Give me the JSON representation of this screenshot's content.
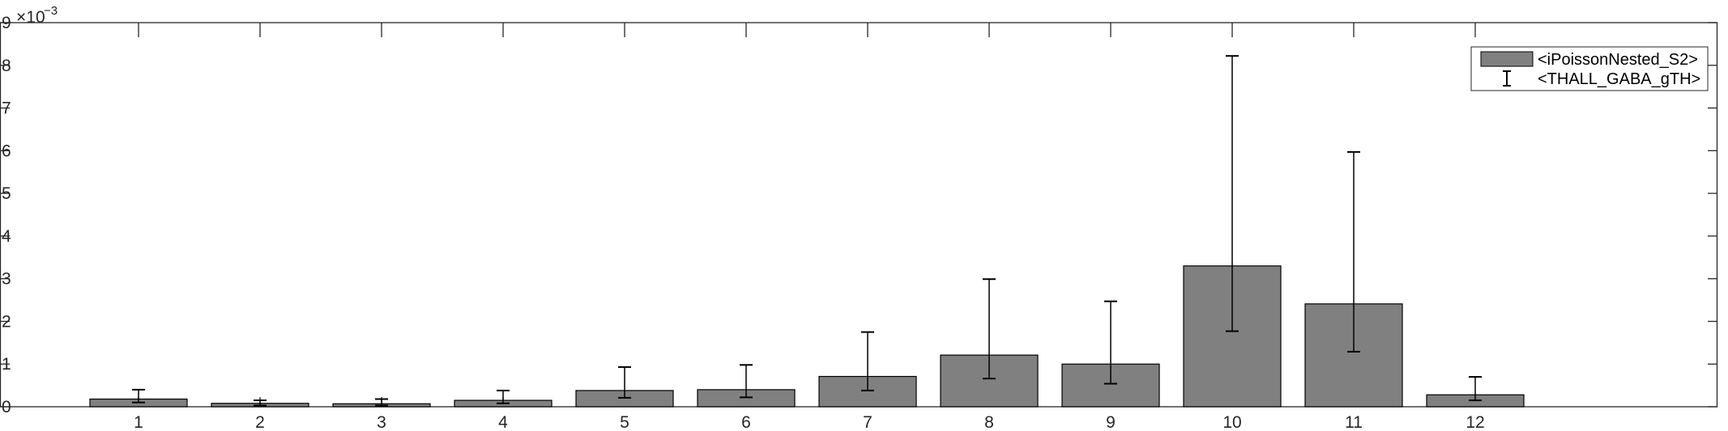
{
  "chart_data": {
    "type": "bar",
    "title": "",
    "xlabel": "",
    "ylabel": "",
    "categories": [
      "1",
      "2",
      "3",
      "4",
      "5",
      "6",
      "7",
      "8",
      "9",
      "10",
      "11",
      "12"
    ],
    "x_extra_slot": true,
    "y_scale_label": "×10",
    "y_scale_exponent": "−3",
    "ylim": [
      0,
      9
    ],
    "yticks": [
      "0",
      "1",
      "2",
      "3",
      "4",
      "5",
      "6",
      "7",
      "8",
      "9"
    ],
    "series": [
      {
        "name": "<iPoissonNested_S2>",
        "type": "bar",
        "color": "#808080",
        "values": [
          0.18,
          0.08,
          0.07,
          0.15,
          0.38,
          0.4,
          0.71,
          1.21,
          1.0,
          3.3,
          2.41,
          0.28
        ]
      },
      {
        "name": "<THALL_GABA_gTH>",
        "type": "errorbar",
        "color": "#000000",
        "lower": [
          0.1,
          0.03,
          0.03,
          0.08,
          0.21,
          0.22,
          0.38,
          0.66,
          0.54,
          1.77,
          1.29,
          0.15
        ],
        "upper": [
          0.4,
          0.15,
          0.18,
          0.38,
          0.93,
          0.98,
          1.75,
          2.99,
          2.47,
          8.22,
          5.97,
          0.7
        ]
      }
    ],
    "legend": {
      "position": "top-right"
    },
    "grid": false
  }
}
